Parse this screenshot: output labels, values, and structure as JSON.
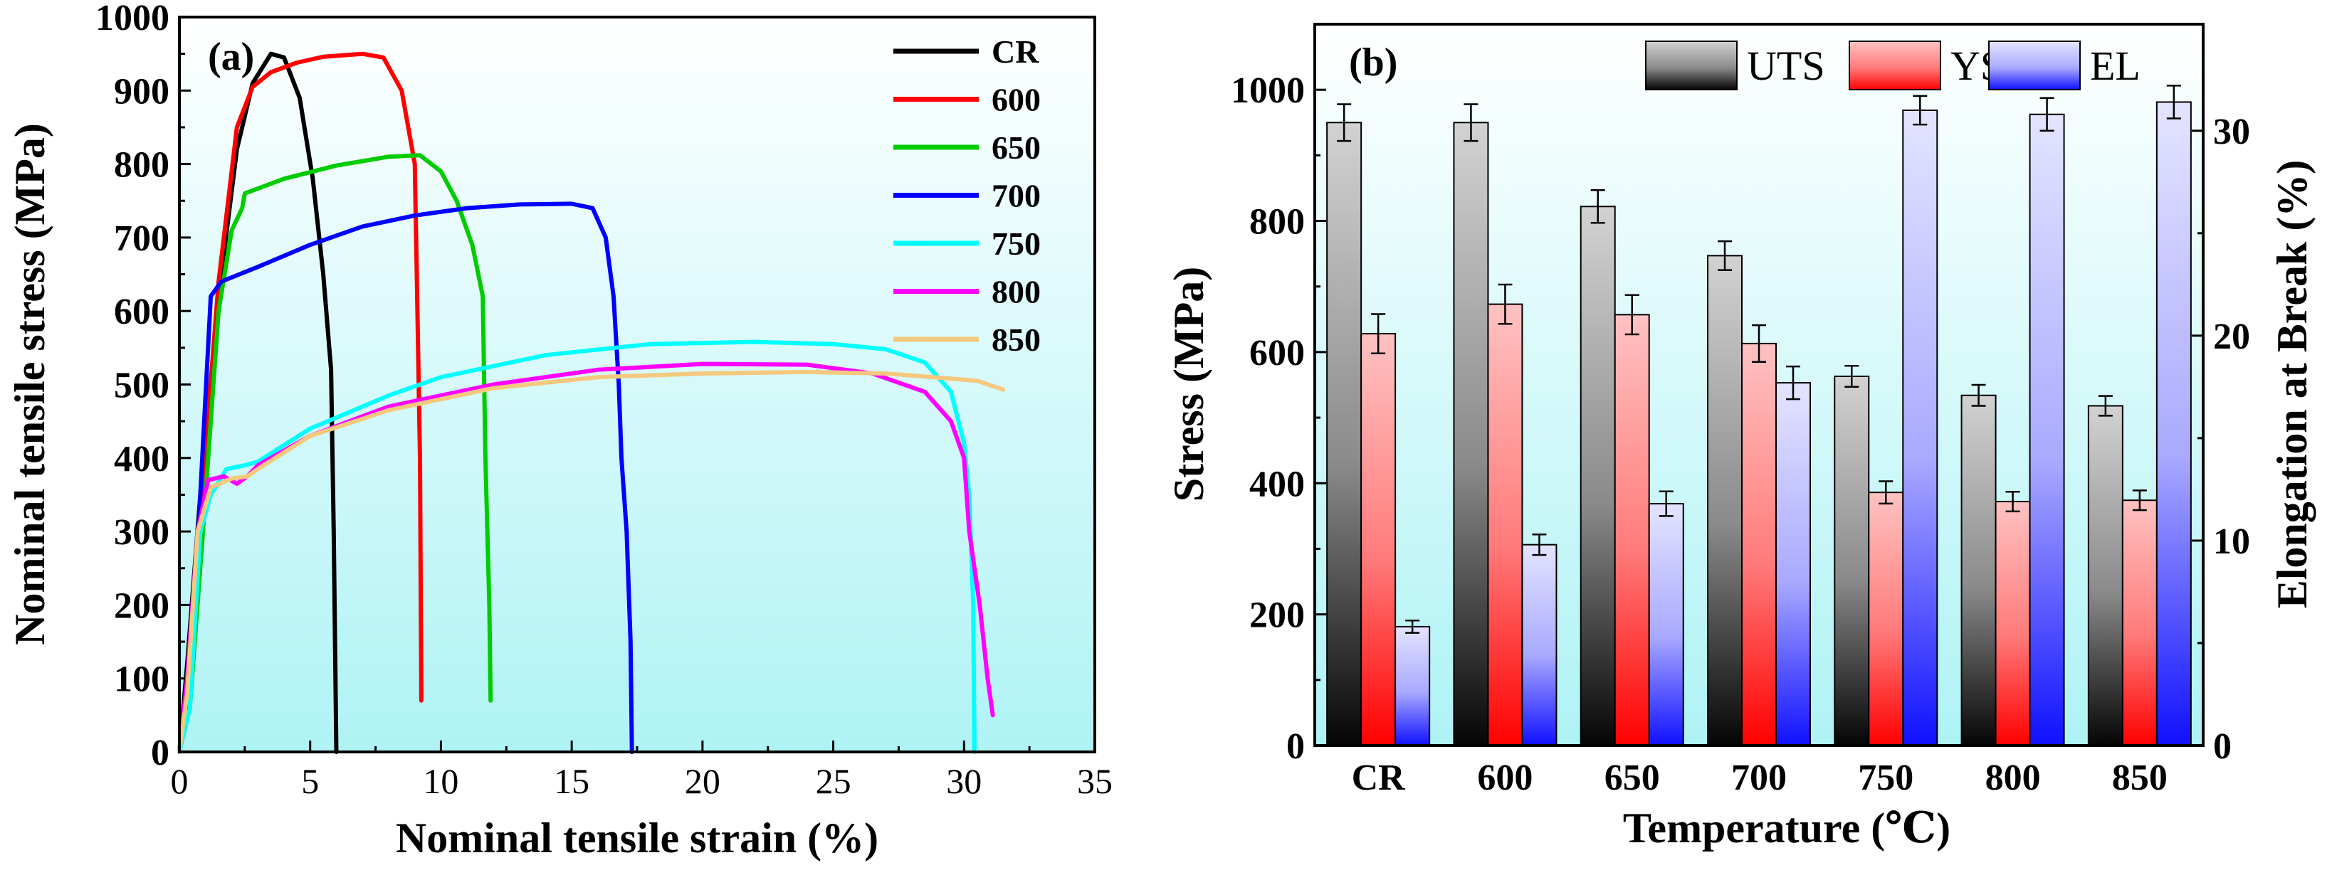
{
  "chart_data": [
    {
      "panel_label": "(a)",
      "type": "line",
      "xlabel": "Nominal tensile strain (%)",
      "ylabel": "Nominal tensile stress (MPa)",
      "xlim": [
        0,
        35
      ],
      "ylim": [
        0,
        1000
      ],
      "xticks": [
        0,
        5,
        10,
        15,
        20,
        25,
        30,
        35
      ],
      "yticks": [
        0,
        100,
        200,
        300,
        400,
        500,
        600,
        700,
        800,
        900,
        1000
      ],
      "legend_position": "top-right",
      "series": [
        {
          "name": "CR",
          "color": "#000000",
          "points": [
            [
              0,
              0
            ],
            [
              0.3,
              120
            ],
            [
              0.8,
              350
            ],
            [
              1.5,
              620
            ],
            [
              2.2,
              820
            ],
            [
              2.8,
              910
            ],
            [
              3.5,
              950
            ],
            [
              4.0,
              945
            ],
            [
              4.6,
              890
            ],
            [
              5.1,
              780
            ],
            [
              5.5,
              650
            ],
            [
              5.8,
              520
            ],
            [
              5.9,
              300
            ],
            [
              6.0,
              0
            ]
          ]
        },
        {
          "name": "600",
          "color": "#ff0000",
          "points": [
            [
              0,
              0
            ],
            [
              0.3,
              100
            ],
            [
              0.8,
              320
            ],
            [
              1.5,
              640
            ],
            [
              2.2,
              850
            ],
            [
              2.8,
              905
            ],
            [
              3.5,
              925
            ],
            [
              4.5,
              938
            ],
            [
              5.5,
              946
            ],
            [
              7,
              950
            ],
            [
              7.8,
              945
            ],
            [
              8.5,
              900
            ],
            [
              9.0,
              800
            ],
            [
              9.1,
              600
            ],
            [
              9.2,
              400
            ],
            [
              9.25,
              70
            ]
          ]
        },
        {
          "name": "650",
          "color": "#00cc00",
          "points": [
            [
              0,
              0
            ],
            [
              0.4,
              60
            ],
            [
              0.9,
              300
            ],
            [
              1.5,
              600
            ],
            [
              2.0,
              710
            ],
            [
              2.4,
              740
            ],
            [
              2.5,
              760
            ],
            [
              4,
              780
            ],
            [
              6,
              798
            ],
            [
              8,
              810
            ],
            [
              9.2,
              812
            ],
            [
              10,
              790
            ],
            [
              10.6,
              750
            ],
            [
              11.2,
              690
            ],
            [
              11.6,
              620
            ],
            [
              11.7,
              400
            ],
            [
              11.85,
              200
            ],
            [
              11.9,
              70
            ]
          ]
        },
        {
          "name": "700",
          "color": "#0000ff",
          "points": [
            [
              0,
              0
            ],
            [
              0.4,
              100
            ],
            [
              0.8,
              350
            ],
            [
              1.2,
              620
            ],
            [
              1.6,
              640
            ],
            [
              3,
              660
            ],
            [
              5,
              690
            ],
            [
              7,
              715
            ],
            [
              9,
              730
            ],
            [
              11,
              740
            ],
            [
              13,
              745
            ],
            [
              15,
              746
            ],
            [
              15.8,
              740
            ],
            [
              16.3,
              700
            ],
            [
              16.6,
              620
            ],
            [
              16.8,
              500
            ],
            [
              16.9,
              400
            ],
            [
              17.1,
              300
            ],
            [
              17.25,
              150
            ],
            [
              17.3,
              0
            ]
          ]
        },
        {
          "name": "750",
          "color": "#00ffff",
          "points": [
            [
              0,
              0
            ],
            [
              0.4,
              60
            ],
            [
              0.8,
              300
            ],
            [
              1.2,
              350
            ],
            [
              1.8,
              385
            ],
            [
              2.5,
              390
            ],
            [
              3,
              395
            ],
            [
              5,
              440
            ],
            [
              8,
              485
            ],
            [
              10,
              510
            ],
            [
              14,
              540
            ],
            [
              18,
              555
            ],
            [
              22,
              558
            ],
            [
              25,
              555
            ],
            [
              27,
              548
            ],
            [
              28.5,
              530
            ],
            [
              29.5,
              490
            ],
            [
              30,
              420
            ],
            [
              30.2,
              350
            ],
            [
              30.35,
              200
            ],
            [
              30.4,
              0
            ]
          ]
        },
        {
          "name": "800",
          "color": "#ff00ff",
          "points": [
            [
              0,
              0
            ],
            [
              0.3,
              100
            ],
            [
              0.7,
              300
            ],
            [
              1.1,
              370
            ],
            [
              1.7,
              375
            ],
            [
              2.2,
              365
            ],
            [
              2.6,
              375
            ],
            [
              3,
              390
            ],
            [
              5,
              430
            ],
            [
              8,
              470
            ],
            [
              12,
              500
            ],
            [
              16,
              520
            ],
            [
              20,
              528
            ],
            [
              24,
              527
            ],
            [
              26.5,
              515
            ],
            [
              28.5,
              490
            ],
            [
              29.5,
              450
            ],
            [
              30,
              400
            ],
            [
              30.2,
              300
            ],
            [
              30.6,
              200
            ],
            [
              30.9,
              100
            ],
            [
              31.1,
              50
            ]
          ]
        },
        {
          "name": "850",
          "color": "#f4c97e",
          "points": [
            [
              0,
              0
            ],
            [
              0.3,
              80
            ],
            [
              0.7,
              300
            ],
            [
              1.2,
              360
            ],
            [
              2,
              372
            ],
            [
              2.6,
              375
            ],
            [
              3,
              385
            ],
            [
              5,
              430
            ],
            [
              8,
              465
            ],
            [
              12,
              495
            ],
            [
              16,
              510
            ],
            [
              20,
              515
            ],
            [
              24,
              517
            ],
            [
              27,
              515
            ],
            [
              29.5,
              508
            ],
            [
              30.5,
              505
            ],
            [
              31.5,
              493
            ]
          ]
        }
      ]
    },
    {
      "panel_label": "(b)",
      "type": "bar",
      "xlabel": "Temperature (℃)",
      "ylabel": "Stress (MPa)",
      "y2label": "Elongation at Break (%)",
      "categories": [
        "CR",
        "600",
        "650",
        "700",
        "750",
        "800",
        "850"
      ],
      "ylim": [
        0,
        1100
      ],
      "yticks": [
        0,
        200,
        400,
        600,
        800,
        1000
      ],
      "y2lim": [
        0,
        35.2
      ],
      "y2ticks": [
        0,
        10,
        20,
        30
      ],
      "legend_position": "top",
      "series": [
        {
          "name": "UTS",
          "axis": "left",
          "color": "#3c3c3c",
          "values": [
            950,
            950,
            822,
            747,
            563,
            534,
            518
          ],
          "errors": [
            28,
            28,
            25,
            22,
            16,
            16,
            15
          ]
        },
        {
          "name": "YS",
          "axis": "left",
          "color": "#ff0000",
          "values": [
            628,
            673,
            657,
            613,
            386,
            372,
            374
          ],
          "errors": [
            30,
            30,
            30,
            28,
            17,
            15,
            15
          ]
        },
        {
          "name": "EL",
          "axis": "right",
          "color": "#2020ff",
          "values": [
            5.8,
            9.8,
            11.8,
            17.7,
            31.0,
            30.8,
            31.4
          ],
          "errors": [
            0.3,
            0.5,
            0.6,
            0.8,
            0.7,
            0.8,
            0.8
          ]
        }
      ]
    }
  ]
}
